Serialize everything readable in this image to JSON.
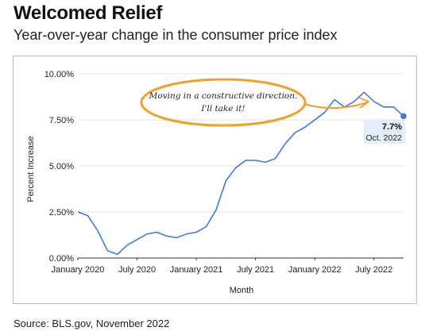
{
  "title": "Welcomed Relief",
  "subtitle": "Year-over-year change in the consumer price index",
  "source": "Source: BLS.gov, November 2022",
  "colors": {
    "line": "#3b7ddd",
    "annotation": "#f0a12c",
    "callout_bg": "#e4eefb"
  },
  "chart_data": {
    "type": "line",
    "xlabel": "Month",
    "ylabel": "Percent Increase",
    "ylim": [
      0,
      10
    ],
    "y_ticks": [
      "0.00%",
      "2.50%",
      "5.00%",
      "7.50%",
      "10.00%"
    ],
    "x_ticks": [
      "January 2020",
      "July 2020",
      "January 2021",
      "July 2021",
      "January 2022",
      "July 2022"
    ],
    "grid": "horizontal",
    "series": [
      {
        "x": [
          "2020-01",
          "2020-02",
          "2020-03",
          "2020-04",
          "2020-05",
          "2020-06",
          "2020-07",
          "2020-08",
          "2020-09",
          "2020-10",
          "2020-11",
          "2020-12",
          "2021-01",
          "2021-02",
          "2021-03",
          "2021-04",
          "2021-05",
          "2021-06",
          "2021-07",
          "2021-08",
          "2021-09",
          "2021-10",
          "2021-11",
          "2021-12",
          "2022-01",
          "2022-02",
          "2022-03",
          "2022-04",
          "2022-05",
          "2022-06",
          "2022-07",
          "2022-08",
          "2022-09",
          "2022-10"
        ],
        "values": [
          2.5,
          2.3,
          1.5,
          0.4,
          0.2,
          0.7,
          1.0,
          1.3,
          1.4,
          1.2,
          1.1,
          1.3,
          1.4,
          1.7,
          2.6,
          4.2,
          4.9,
          5.3,
          5.3,
          5.2,
          5.4,
          6.2,
          6.8,
          7.1,
          7.5,
          7.9,
          8.6,
          8.2,
          8.5,
          9.0,
          8.5,
          8.2,
          8.2,
          7.7
        ]
      }
    ],
    "callout": {
      "value": "7.7%",
      "label": "Oct. 2022"
    },
    "annotation": {
      "line1": "Moving in a constructive direction.",
      "line2": "I'll take it!"
    }
  }
}
